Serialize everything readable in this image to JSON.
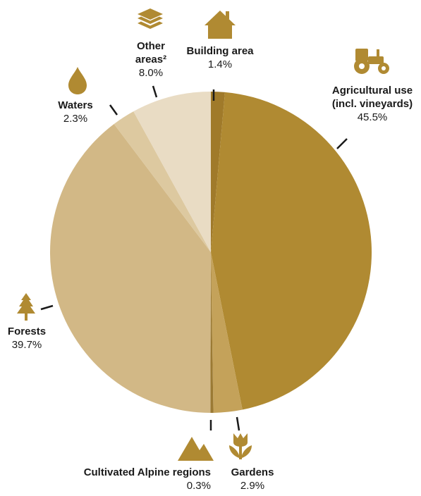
{
  "chart_data": {
    "type": "pie",
    "title": "",
    "start": "12 o'clock",
    "direction": "clockwise",
    "slices": [
      {
        "label": "Building area",
        "display": "1.4%",
        "value": 1.4,
        "color": "#a07a2a",
        "icon": "house-icon"
      },
      {
        "label": "Agricultural use (incl. vineyards)",
        "label_lines": [
          "Agricultural use",
          "(incl. vineyards)"
        ],
        "display": "45.5%",
        "value": 45.5,
        "color": "#b08a32",
        "icon": "tractor-icon"
      },
      {
        "label": "Gardens",
        "display": "2.9%",
        "value": 2.9,
        "color": "#c4a25a",
        "icon": "tulip-icon"
      },
      {
        "label": "Cultivated Alpine regions",
        "display": "0.3%",
        "value": 0.3,
        "color": "#9b7a34",
        "icon": "mountains-icon"
      },
      {
        "label": "Forests",
        "display": "39.7%",
        "value": 39.7,
        "color": "#d2b886",
        "icon": "fir-tree-icon"
      },
      {
        "label": "Waters",
        "display": "2.3%",
        "value": 2.3,
        "color": "#ddc9a0",
        "icon": "water-drop-icon"
      },
      {
        "label": "Other areas²",
        "label_lines": [
          "Other",
          "areas²"
        ],
        "display": "8.0%",
        "value": 8.0,
        "color": "#e9dcc4",
        "icon": "layers-icon"
      }
    ]
  }
}
